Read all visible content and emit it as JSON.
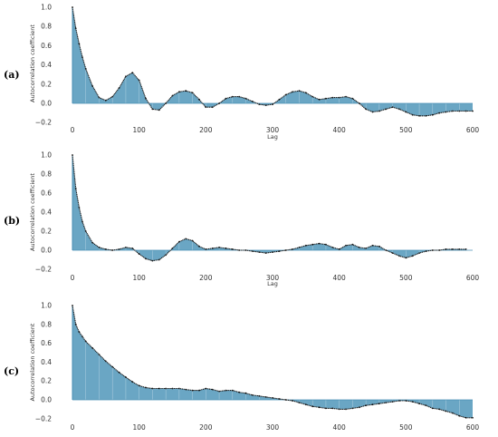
{
  "figure": {
    "panels": [
      {
        "label": "(a)"
      },
      {
        "label": "(b)"
      },
      {
        "label": "(c)"
      }
    ]
  },
  "colors": {
    "fill": "#6aa6c4",
    "line": "#1a1a1a",
    "stem": "#4a8fb5",
    "zero_line": "#4a8fb5"
  },
  "chart_data": [
    {
      "type": "area",
      "panel": "(a)",
      "xlabel": "Lag",
      "ylabel": "Autocorrelation coefficient",
      "xlim": [
        0,
        600
      ],
      "ylim": [
        -0.2,
        1.0
      ],
      "x_ticks": [
        "0",
        "100",
        "200",
        "300",
        "400",
        "500",
        "600"
      ],
      "y_ticks": [
        "1.0",
        "0.8",
        "0.6",
        "0.4",
        "0.2",
        "0.0",
        "−0.2"
      ],
      "grid": false,
      "x": [
        0,
        5,
        10,
        15,
        20,
        30,
        40,
        50,
        60,
        70,
        80,
        90,
        100,
        110,
        120,
        130,
        140,
        150,
        160,
        170,
        180,
        190,
        200,
        210,
        220,
        230,
        240,
        250,
        260,
        270,
        280,
        290,
        300,
        310,
        320,
        330,
        340,
        350,
        360,
        370,
        380,
        390,
        400,
        410,
        420,
        430,
        440,
        450,
        460,
        470,
        480,
        490,
        500,
        510,
        520,
        530,
        540,
        550,
        560,
        570,
        580,
        590,
        600
      ],
      "values": [
        1.0,
        0.78,
        0.62,
        0.48,
        0.36,
        0.18,
        0.06,
        0.03,
        0.07,
        0.16,
        0.28,
        0.32,
        0.24,
        0.05,
        -0.06,
        -0.07,
        0.0,
        0.08,
        0.12,
        0.13,
        0.11,
        0.04,
        -0.04,
        -0.04,
        0.0,
        0.05,
        0.07,
        0.07,
        0.05,
        0.02,
        -0.01,
        -0.02,
        -0.01,
        0.04,
        0.09,
        0.12,
        0.13,
        0.11,
        0.07,
        0.04,
        0.05,
        0.06,
        0.06,
        0.07,
        0.05,
        0.0,
        -0.06,
        -0.09,
        -0.08,
        -0.06,
        -0.04,
        -0.06,
        -0.09,
        -0.12,
        -0.13,
        -0.13,
        -0.12,
        -0.1,
        -0.09,
        -0.08,
        -0.08,
        -0.08,
        -0.08
      ]
    },
    {
      "type": "area",
      "panel": "(b)",
      "xlabel": "Lag",
      "ylabel": "Autocorrelation coefficient",
      "xlim": [
        0,
        600
      ],
      "ylim": [
        -0.2,
        1.0
      ],
      "x_ticks": [
        "0",
        "100",
        "200",
        "300",
        "400",
        "500",
        "600"
      ],
      "y_ticks": [
        "1.0",
        "0.8",
        "0.6",
        "0.4",
        "0.2",
        "0.0",
        "−0.2"
      ],
      "grid": false,
      "x": [
        0,
        5,
        10,
        15,
        20,
        30,
        40,
        50,
        60,
        70,
        80,
        90,
        100,
        110,
        120,
        130,
        140,
        150,
        160,
        170,
        180,
        190,
        200,
        210,
        220,
        230,
        240,
        250,
        260,
        270,
        280,
        290,
        300,
        310,
        320,
        330,
        340,
        350,
        360,
        370,
        380,
        390,
        400,
        410,
        420,
        430,
        440,
        450,
        460,
        470,
        480,
        490,
        500,
        510,
        520,
        530,
        540,
        550,
        560,
        570,
        580,
        590
      ],
      "values": [
        1.0,
        0.65,
        0.45,
        0.3,
        0.2,
        0.08,
        0.03,
        0.01,
        0.0,
        0.01,
        0.03,
        0.02,
        -0.04,
        -0.09,
        -0.11,
        -0.1,
        -0.05,
        0.02,
        0.09,
        0.12,
        0.1,
        0.04,
        0.01,
        0.02,
        0.03,
        0.02,
        0.01,
        0.0,
        0.0,
        -0.01,
        -0.02,
        -0.03,
        -0.02,
        -0.01,
        0.0,
        0.01,
        0.03,
        0.05,
        0.06,
        0.07,
        0.06,
        0.03,
        0.01,
        0.05,
        0.06,
        0.03,
        0.02,
        0.05,
        0.04,
        0.0,
        -0.03,
        -0.06,
        -0.08,
        -0.06,
        -0.03,
        -0.01,
        0.0,
        0.0,
        0.01,
        0.01,
        0.01,
        0.01
      ]
    },
    {
      "type": "area",
      "panel": "(c)",
      "xlabel": "",
      "ylabel": "Autocorrelation coefficient",
      "xlim": [
        0,
        600
      ],
      "ylim": [
        -0.2,
        1.0
      ],
      "x_ticks": [
        "0",
        "100",
        "200",
        "300",
        "400",
        "500",
        "600"
      ],
      "y_ticks": [
        "1.0",
        "0.8",
        "0.6",
        "0.4",
        "0.2",
        "0.0",
        "−0.2"
      ],
      "grid": false,
      "x": [
        0,
        5,
        10,
        15,
        20,
        30,
        40,
        50,
        60,
        70,
        80,
        90,
        100,
        110,
        120,
        130,
        140,
        150,
        160,
        170,
        180,
        190,
        200,
        210,
        220,
        230,
        240,
        250,
        260,
        270,
        280,
        290,
        300,
        310,
        320,
        330,
        340,
        350,
        360,
        370,
        380,
        390,
        400,
        410,
        420,
        430,
        440,
        450,
        460,
        470,
        480,
        490,
        500,
        510,
        520,
        530,
        540,
        550,
        560,
        570,
        580,
        590,
        600
      ],
      "values": [
        1.0,
        0.8,
        0.72,
        0.67,
        0.62,
        0.55,
        0.48,
        0.41,
        0.35,
        0.29,
        0.24,
        0.19,
        0.15,
        0.13,
        0.12,
        0.12,
        0.12,
        0.12,
        0.12,
        0.11,
        0.1,
        0.1,
        0.12,
        0.11,
        0.09,
        0.1,
        0.1,
        0.08,
        0.07,
        0.05,
        0.04,
        0.03,
        0.02,
        0.01,
        0.0,
        -0.01,
        -0.03,
        -0.05,
        -0.07,
        -0.08,
        -0.09,
        -0.09,
        -0.1,
        -0.1,
        -0.09,
        -0.08,
        -0.06,
        -0.05,
        -0.04,
        -0.03,
        -0.02,
        -0.01,
        -0.01,
        -0.02,
        -0.04,
        -0.06,
        -0.09,
        -0.1,
        -0.12,
        -0.14,
        -0.17,
        -0.19,
        -0.19
      ]
    }
  ]
}
